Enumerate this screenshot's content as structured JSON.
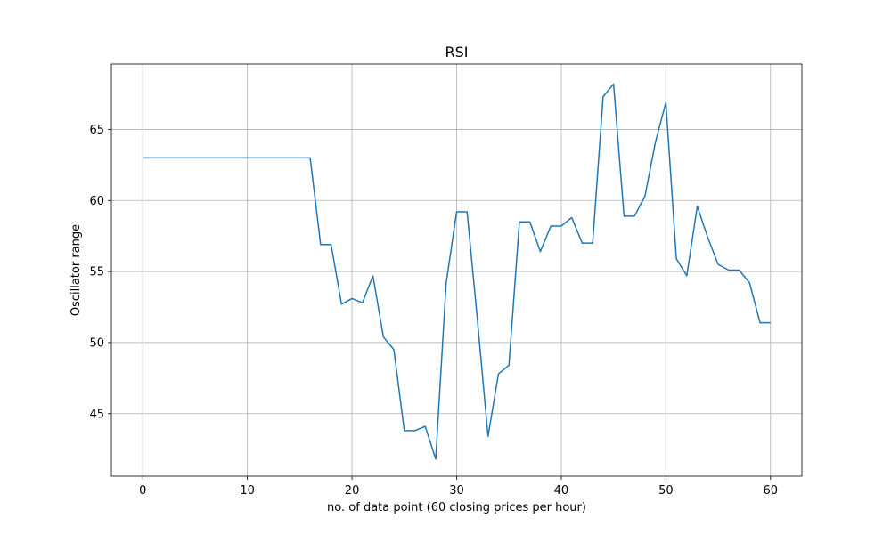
{
  "chart_data": {
    "type": "line",
    "title": "RSI",
    "xlabel": "no. of data point (60 closing prices per hour)",
    "ylabel": "Oscillator range",
    "xlim": [
      -3,
      63
    ],
    "ylim": [
      40.6,
      69.6
    ],
    "xticks": [
      0,
      10,
      20,
      30,
      40,
      50,
      60
    ],
    "yticks": [
      45,
      50,
      55,
      60,
      65
    ],
    "grid": true,
    "series": [
      {
        "color": "#1f77b4",
        "x": [
          0,
          1,
          2,
          3,
          4,
          5,
          6,
          7,
          8,
          9,
          10,
          11,
          12,
          13,
          14,
          15,
          16,
          17,
          18,
          19,
          20,
          21,
          22,
          23,
          24,
          25,
          26,
          27,
          28,
          29,
          30,
          31,
          32,
          33,
          34,
          35,
          36,
          37,
          38,
          39,
          40,
          41,
          42,
          43,
          44,
          45,
          46,
          47,
          48,
          49,
          50,
          51,
          52,
          53,
          54,
          55,
          56,
          57,
          58,
          59,
          60
        ],
        "y": [
          63.0,
          63.0,
          63.0,
          63.0,
          63.0,
          63.0,
          63.0,
          63.0,
          63.0,
          63.0,
          63.0,
          63.0,
          63.0,
          63.0,
          63.0,
          63.0,
          63.0,
          56.9,
          56.9,
          52.7,
          53.1,
          52.8,
          54.7,
          50.4,
          49.5,
          43.8,
          43.8,
          44.1,
          41.8,
          54.2,
          59.2,
          59.2,
          51.5,
          43.4,
          47.8,
          48.4,
          58.5,
          58.5,
          56.4,
          58.2,
          58.2,
          58.8,
          57.0,
          57.0,
          67.3,
          68.2,
          58.9,
          58.9,
          60.3,
          64.1,
          66.9,
          55.9,
          54.7,
          59.6,
          57.4,
          55.5,
          55.1,
          55.1,
          54.2,
          51.4,
          51.4
        ]
      }
    ]
  }
}
